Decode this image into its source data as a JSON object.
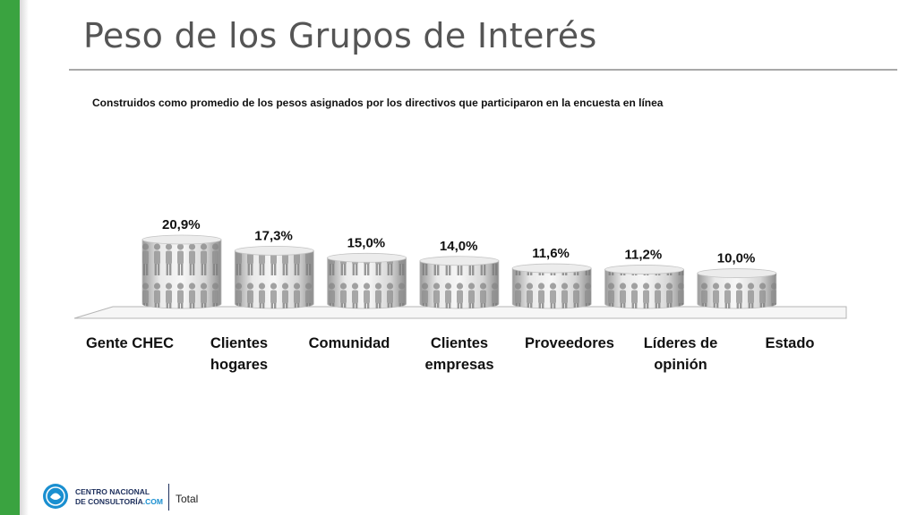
{
  "title": "Peso de los Grupos de Interés",
  "subtitle": "Construidos como promedio de los pesos asignados por los directivos que participaron en la encuesta en línea",
  "footer": {
    "brand_line1": "CENTRO NACIONAL",
    "brand_line2_main": "DE CONSULTORÍA",
    "brand_line2_accent": ".COM",
    "label": "Total"
  },
  "colors": {
    "side_bar": "#3aa340",
    "brand_blue": "#1d2f5c",
    "brand_accent": "#1a8fd0"
  },
  "chart_data": {
    "type": "bar",
    "title": "Peso de los Grupos de Interés",
    "subtitle": "Construidos como promedio de los pesos asignados por los directivos que participaron en la encuesta en línea",
    "categories": [
      [
        "Gente CHEC"
      ],
      [
        "Clientes",
        "hogares"
      ],
      [
        "Comunidad"
      ],
      [
        "Clientes",
        "empresas"
      ],
      [
        "Proveedores"
      ],
      [
        "Líderes de",
        "opinión"
      ],
      [
        "Estado"
      ]
    ],
    "values": [
      20.9,
      17.3,
      15.0,
      14.0,
      11.6,
      11.2,
      10.0
    ],
    "data_labels": [
      "20,9%",
      "17,3%",
      "15,0%",
      "14,0%",
      "11,6%",
      "11,2%",
      "10,0%"
    ],
    "unit": "%",
    "style": "3D cylinders with people imagery",
    "grid": false,
    "legend": "none"
  }
}
